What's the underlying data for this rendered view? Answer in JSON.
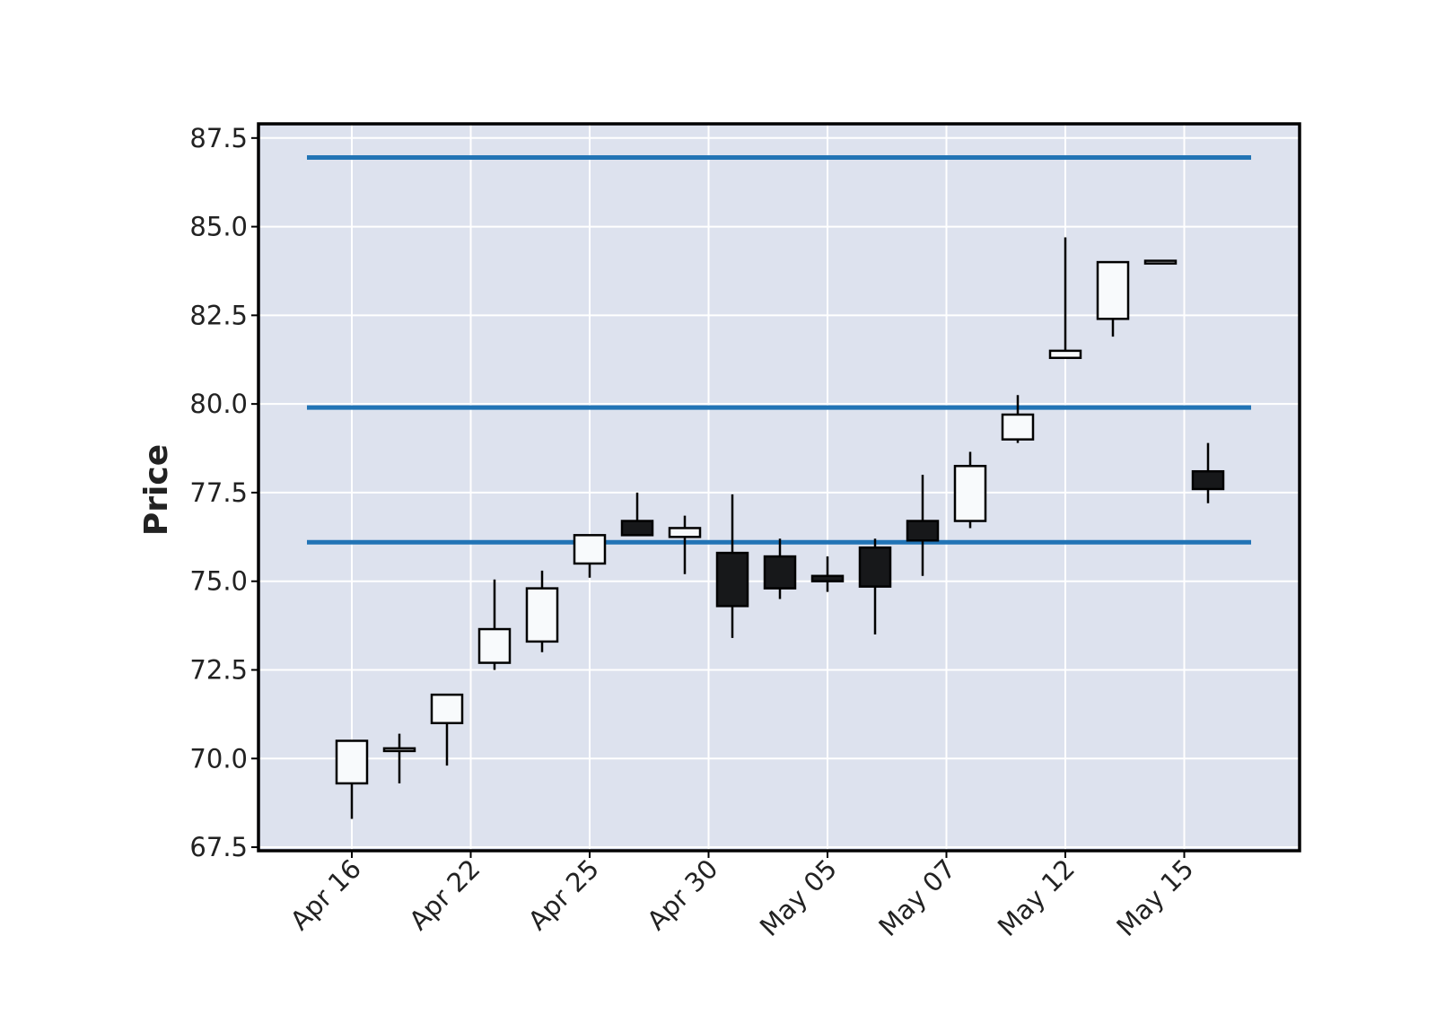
{
  "chart_data": {
    "type": "candlestick",
    "title": "",
    "xlabel": "",
    "ylabel": "Price",
    "ylim": [
      67.4,
      87.9
    ],
    "yticks": [
      "67.5",
      "70.0",
      "72.5",
      "75.0",
      "77.5",
      "80.0",
      "82.5",
      "85.0",
      "87.5"
    ],
    "xtick_labels": [
      "Apr 16",
      "Apr 22",
      "Apr 25",
      "Apr 30",
      "May 05",
      "May 07",
      "May 12",
      "May 15"
    ],
    "grid": true,
    "colors": {
      "background": "#dde2ee",
      "grid": "#ffffff",
      "up_body": "#f8fafc",
      "down_body": "#17181a",
      "edge": "#000000",
      "hline": "#2274b5"
    },
    "candles": [
      {
        "open": 69.3,
        "high": 70.5,
        "low": 68.3,
        "close": 70.5
      },
      {
        "open": 70.2,
        "high": 70.7,
        "low": 69.3,
        "close": 70.25
      },
      {
        "open": 71.0,
        "high": 71.8,
        "low": 69.8,
        "close": 71.8
      },
      {
        "open": 72.7,
        "high": 75.05,
        "low": 72.5,
        "close": 73.65
      },
      {
        "open": 73.3,
        "high": 75.3,
        "low": 73.0,
        "close": 74.8
      },
      {
        "open": 75.5,
        "high": 76.3,
        "low": 75.1,
        "close": 76.3
      },
      {
        "open": 76.7,
        "high": 77.5,
        "low": 76.3,
        "close": 76.3
      },
      {
        "open": 76.25,
        "high": 76.85,
        "low": 75.2,
        "close": 76.5
      },
      {
        "open": 75.8,
        "high": 77.45,
        "low": 73.4,
        "close": 74.3
      },
      {
        "open": 75.7,
        "high": 76.2,
        "low": 74.5,
        "close": 74.8
      },
      {
        "open": 75.15,
        "high": 75.7,
        "low": 74.7,
        "close": 75.0
      },
      {
        "open": 75.95,
        "high": 76.2,
        "low": 73.5,
        "close": 74.85
      },
      {
        "open": 76.7,
        "high": 78.0,
        "low": 75.15,
        "close": 76.15
      },
      {
        "open": 76.7,
        "high": 78.65,
        "low": 76.5,
        "close": 78.25
      },
      {
        "open": 79.0,
        "high": 80.25,
        "low": 78.9,
        "close": 79.7
      },
      {
        "open": 81.3,
        "high": 84.7,
        "low": 81.3,
        "close": 81.5
      },
      {
        "open": 82.4,
        "high": 84.0,
        "low": 81.9,
        "close": 84.0
      },
      {
        "open": 84.0,
        "high": 84.0,
        "low": 84.0,
        "close": 84.0
      },
      {
        "open": 78.1,
        "high": 78.9,
        "low": 77.2,
        "close": 77.6
      }
    ],
    "xtick_candle_index": [
      0,
      2.5,
      5,
      7.5,
      10,
      12.5,
      15,
      17.5
    ],
    "hlines": [
      76.1,
      79.9,
      86.95
    ]
  }
}
